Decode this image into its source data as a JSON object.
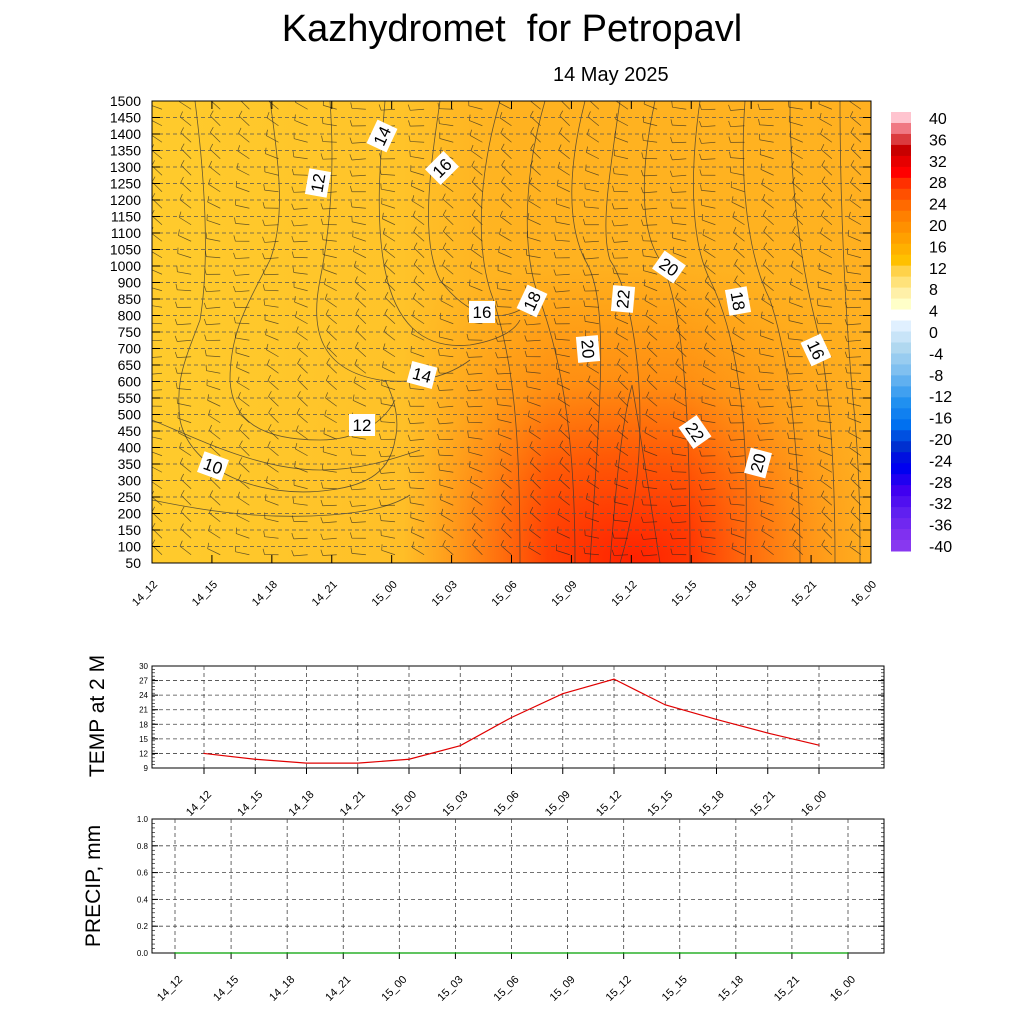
{
  "title": "Kazhydromet  for Petropavl",
  "date": "14 May 2025",
  "chart_data": [
    {
      "type": "heatmap",
      "x_ticks": [
        "14_12",
        "14_15",
        "14_18",
        "14_21",
        "15_00",
        "15_03",
        "15_06",
        "15_09",
        "15_12",
        "15_15",
        "15_18",
        "15_21",
        "16_00"
      ],
      "y_ticks": [
        1500,
        1450,
        1400,
        1350,
        1300,
        1250,
        1200,
        1150,
        1100,
        1050,
        1000,
        900,
        850,
        800,
        750,
        700,
        650,
        600,
        550,
        500,
        450,
        400,
        350,
        300,
        250,
        200,
        150,
        100,
        50
      ],
      "colorbar_labels": [
        40,
        36,
        32,
        28,
        24,
        20,
        16,
        12,
        8,
        4,
        0,
        -4,
        -8,
        -12,
        -16,
        -20,
        -24,
        -28,
        -32,
        -36,
        -40
      ],
      "contour_labels": [
        "14",
        "16",
        "12",
        "20",
        "18",
        "16",
        "22",
        "18",
        "16",
        "20",
        "14",
        "12",
        "22",
        "20",
        "10"
      ],
      "colors": {
        "warm_low": "#FFC52A",
        "warm_mid": "#FF9A12",
        "hot": "#FF2A00",
        "cold_low": "#CFE8FF",
        "cold_high": "#7B2BFF"
      }
    },
    {
      "type": "line",
      "ylabel": "TEMP at 2 M",
      "x": [
        "14_12",
        "14_15",
        "14_18",
        "14_21",
        "15_00",
        "15_03",
        "15_06",
        "15_09",
        "15_12",
        "15_15",
        "15_18",
        "15_21",
        "16_00"
      ],
      "values": [
        12.0,
        10.8,
        10.0,
        10.0,
        10.8,
        13.6,
        19.4,
        24.3,
        27.3,
        22.0,
        19.0,
        16.2,
        13.7
      ],
      "y_ticks": [
        9,
        12,
        15,
        18,
        21,
        24,
        27,
        30
      ],
      "ylim": [
        9,
        30
      ],
      "color": "#E00000"
    },
    {
      "type": "line",
      "ylabel": "PRECIP, mm",
      "x": [
        "14_12",
        "14_15",
        "14_18",
        "14_21",
        "15_00",
        "15_03",
        "15_06",
        "15_09",
        "15_12",
        "15_15",
        "15_18",
        "15_21",
        "16_00"
      ],
      "values": [
        0,
        0,
        0,
        0,
        0,
        0,
        0,
        0,
        0,
        0,
        0,
        0,
        0
      ],
      "y_ticks": [
        "0.0",
        "0.2",
        "0.4",
        "0.6",
        "0.8",
        "1.0"
      ],
      "ylim": [
        0,
        1
      ],
      "color": "#00A000"
    }
  ]
}
